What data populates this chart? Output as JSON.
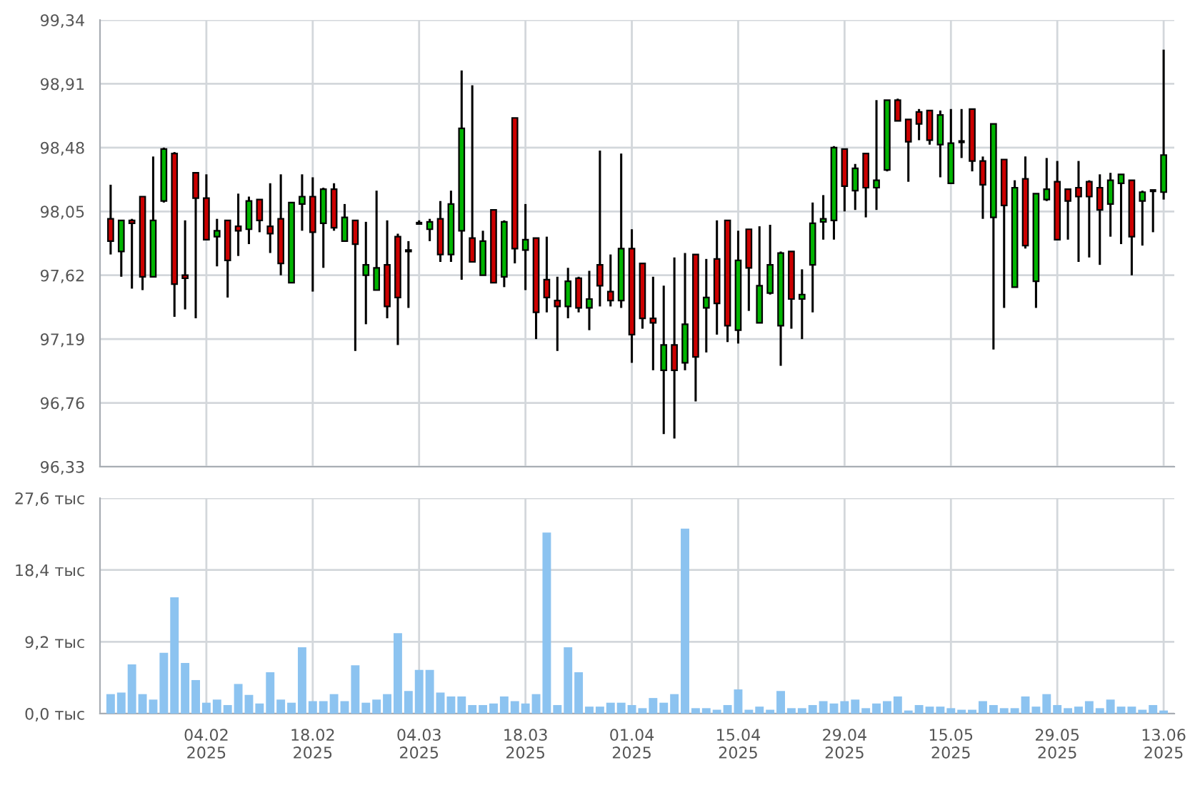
{
  "chart_data": [
    {
      "type": "candlestick",
      "categories": [
        null,
        null,
        null,
        null,
        null,
        null,
        null,
        null,
        null,
        null,
        null,
        null,
        null,
        null,
        null,
        null,
        null,
        null,
        null,
        null,
        null,
        null,
        null,
        null,
        null,
        null,
        null,
        null,
        null,
        null,
        null,
        null,
        null,
        null,
        null,
        null,
        null,
        null,
        null,
        null,
        null,
        null,
        null,
        null,
        null,
        null,
        null,
        null,
        null,
        null,
        null,
        null,
        null,
        null,
        null,
        null,
        null,
        null,
        null,
        null,
        null,
        null,
        null,
        null,
        null,
        null,
        null,
        null,
        null,
        null,
        null,
        null,
        null,
        null,
        null,
        null,
        null,
        null,
        null,
        null,
        null,
        null,
        null,
        null,
        null,
        null,
        null,
        null,
        null,
        null,
        null,
        null,
        null,
        null,
        null,
        null,
        null,
        null,
        null,
        null
      ],
      "ohlc": [
        [
          98.0,
          98.23,
          97.76,
          97.85
        ],
        [
          97.78,
          97.99,
          97.61,
          97.99
        ],
        [
          97.99,
          98.0,
          97.53,
          97.97
        ],
        [
          98.15,
          98.15,
          97.52,
          97.61
        ],
        [
          97.61,
          98.42,
          97.61,
          97.99
        ],
        [
          98.12,
          98.48,
          98.11,
          98.47
        ],
        [
          98.44,
          98.45,
          97.34,
          97.56
        ],
        [
          97.62,
          97.99,
          97.39,
          97.6
        ],
        [
          98.31,
          98.31,
          97.33,
          98.14
        ],
        [
          98.14,
          98.3,
          97.86,
          97.86
        ],
        [
          97.88,
          98.0,
          97.68,
          97.92
        ],
        [
          97.99,
          97.99,
          97.47,
          97.72
        ],
        [
          97.95,
          98.17,
          97.75,
          97.92
        ],
        [
          97.93,
          98.15,
          97.83,
          98.12
        ],
        [
          98.13,
          98.13,
          97.91,
          97.99
        ],
        [
          97.95,
          98.24,
          97.77,
          97.9
        ],
        [
          98.0,
          98.3,
          97.62,
          97.7
        ],
        [
          97.57,
          98.11,
          97.57,
          98.11
        ],
        [
          98.1,
          98.3,
          97.92,
          98.15
        ],
        [
          98.15,
          98.28,
          97.51,
          97.91
        ],
        [
          97.97,
          98.21,
          97.67,
          98.2
        ],
        [
          98.2,
          98.24,
          97.92,
          97.94
        ],
        [
          97.85,
          98.1,
          97.85,
          98.01
        ],
        [
          97.99,
          97.99,
          97.11,
          97.83
        ],
        [
          97.62,
          97.98,
          97.29,
          97.69
        ],
        [
          97.52,
          98.19,
          97.52,
          97.67
        ],
        [
          97.69,
          97.99,
          97.33,
          97.41
        ],
        [
          97.88,
          97.9,
          97.15,
          97.47
        ],
        [
          97.79,
          97.85,
          97.4,
          97.78
        ],
        [
          97.97,
          97.99,
          97.96,
          97.97
        ],
        [
          97.93,
          98.0,
          97.85,
          97.98
        ],
        [
          98.0,
          98.12,
          97.71,
          97.76
        ],
        [
          97.76,
          98.19,
          97.71,
          98.1
        ],
        [
          97.92,
          99.0,
          97.59,
          98.61
        ],
        [
          97.87,
          98.9,
          97.71,
          97.71
        ],
        [
          97.62,
          97.92,
          97.62,
          97.85
        ],
        [
          98.06,
          98.06,
          97.57,
          97.57
        ],
        [
          97.61,
          97.99,
          97.54,
          97.98
        ],
        [
          98.68,
          98.68,
          97.7,
          97.8
        ],
        [
          97.79,
          98.1,
          97.52,
          97.86
        ],
        [
          97.87,
          97.87,
          97.19,
          97.37
        ],
        [
          97.59,
          97.88,
          97.37,
          97.47
        ],
        [
          97.45,
          97.61,
          97.11,
          97.41
        ],
        [
          97.41,
          97.67,
          97.33,
          97.58
        ],
        [
          97.6,
          97.61,
          97.37,
          97.4
        ],
        [
          97.4,
          97.65,
          97.25,
          97.46
        ],
        [
          97.69,
          98.46,
          97.41,
          97.55
        ],
        [
          97.51,
          97.76,
          97.41,
          97.45
        ],
        [
          97.45,
          98.44,
          97.4,
          97.8
        ],
        [
          97.8,
          97.93,
          97.03,
          97.22
        ],
        [
          97.7,
          97.7,
          97.26,
          97.33
        ],
        [
          97.33,
          97.61,
          96.98,
          97.3
        ],
        [
          96.98,
          97.55,
          96.55,
          97.15
        ],
        [
          97.15,
          97.74,
          96.52,
          96.98
        ],
        [
          97.03,
          97.77,
          96.98,
          97.29
        ],
        [
          97.76,
          97.76,
          96.77,
          97.07
        ],
        [
          97.4,
          97.73,
          97.1,
          97.47
        ],
        [
          97.73,
          97.99,
          97.22,
          97.43
        ],
        [
          97.99,
          97.99,
          97.17,
          97.28
        ],
        [
          97.25,
          97.92,
          97.16,
          97.72
        ],
        [
          97.93,
          97.93,
          97.38,
          97.67
        ],
        [
          97.3,
          97.95,
          97.3,
          97.55
        ],
        [
          97.5,
          97.96,
          97.49,
          97.69
        ],
        [
          97.28,
          97.78,
          97.01,
          97.77
        ],
        [
          97.78,
          97.78,
          97.26,
          97.46
        ],
        [
          97.46,
          97.66,
          97.19,
          97.49
        ],
        [
          97.69,
          98.11,
          97.37,
          97.97
        ],
        [
          97.98,
          98.16,
          97.86,
          98.0
        ],
        [
          97.99,
          98.49,
          97.86,
          98.48
        ],
        [
          98.47,
          98.47,
          98.05,
          98.22
        ],
        [
          98.19,
          98.37,
          98.06,
          98.34
        ],
        [
          98.44,
          98.44,
          98.01,
          98.21
        ],
        [
          98.21,
          98.8,
          98.06,
          98.26
        ],
        [
          98.33,
          98.8,
          98.32,
          98.8
        ],
        [
          98.8,
          98.81,
          98.66,
          98.66
        ],
        [
          98.67,
          98.67,
          98.25,
          98.52
        ],
        [
          98.72,
          98.74,
          98.53,
          98.64
        ],
        [
          98.73,
          98.73,
          98.5,
          98.53
        ],
        [
          98.5,
          98.73,
          98.28,
          98.7
        ],
        [
          98.24,
          98.74,
          98.24,
          98.51
        ],
        [
          98.52,
          98.74,
          98.41,
          98.52
        ],
        [
          98.74,
          98.74,
          98.32,
          98.39
        ],
        [
          98.39,
          98.42,
          98.0,
          98.23
        ],
        [
          98.01,
          98.64,
          97.12,
          98.64
        ],
        [
          98.4,
          98.4,
          97.4,
          98.09
        ],
        [
          97.54,
          98.26,
          97.54,
          98.21
        ],
        [
          98.27,
          98.42,
          97.8,
          97.82
        ],
        [
          97.58,
          98.17,
          97.4,
          98.17
        ],
        [
          98.13,
          98.41,
          98.12,
          98.2
        ],
        [
          98.25,
          98.39,
          97.86,
          97.86
        ],
        [
          98.2,
          98.2,
          97.86,
          98.12
        ],
        [
          98.21,
          98.39,
          97.71,
          98.15
        ],
        [
          98.25,
          98.26,
          97.74,
          98.15
        ],
        [
          98.21,
          98.3,
          97.69,
          98.06
        ],
        [
          98.1,
          98.31,
          97.88,
          98.26
        ],
        [
          98.24,
          98.3,
          97.83,
          98.3
        ],
        [
          98.26,
          98.26,
          97.62,
          97.88
        ],
        [
          98.12,
          98.19,
          97.82,
          98.18
        ],
        [
          98.19,
          98.19,
          97.91,
          98.19
        ],
        [
          98.18,
          99.14,
          98.13,
          98.43
        ]
      ],
      "colors": [
        "#cc0000",
        "#00b400",
        "#cc0000",
        "#cc0000",
        "#00b400",
        "#00b400",
        "#cc0000",
        "#cc0000",
        "#cc0000",
        "#cc0000",
        "#00b400",
        "#cc0000",
        "#cc0000",
        "#00b400",
        "#cc0000",
        "#cc0000",
        "#cc0000",
        "#00b400",
        "#00b400",
        "#cc0000",
        "#00b400",
        "#cc0000",
        "#00b400",
        "#cc0000",
        "#00b400",
        "#00b400",
        "#cc0000",
        "#cc0000",
        "#cc0000",
        "#000000",
        "#00b400",
        "#cc0000",
        "#00b400",
        "#00b400",
        "#cc0000",
        "#00b400",
        "#cc0000",
        "#00b400",
        "#cc0000",
        "#00b400",
        "#cc0000",
        "#cc0000",
        "#cc0000",
        "#00b400",
        "#cc0000",
        "#00b400",
        "#cc0000",
        "#cc0000",
        "#00b400",
        "#cc0000",
        "#cc0000",
        "#cc0000",
        "#00b400",
        "#cc0000",
        "#00b400",
        "#cc0000",
        "#00b400",
        "#cc0000",
        "#cc0000",
        "#00b400",
        "#cc0000",
        "#00b400",
        "#00b400",
        "#00b400",
        "#cc0000",
        "#00b400",
        "#00b400",
        "#00b400",
        "#00b400",
        "#cc0000",
        "#00b400",
        "#cc0000",
        "#00b400",
        "#00b400",
        "#cc0000",
        "#cc0000",
        "#cc0000",
        "#cc0000",
        "#00b400",
        "#00b400",
        "#000000",
        "#cc0000",
        "#cc0000",
        "#00b400",
        "#cc0000",
        "#00b400",
        "#cc0000",
        "#00b400",
        "#00b400",
        "#cc0000",
        "#cc0000",
        "#cc0000",
        "#cc0000",
        "#cc0000",
        "#00b400",
        "#00b400",
        "#cc0000",
        "#00b400",
        "#000000",
        "#00b400"
      ],
      "ylim": [
        96.33,
        99.34
      ],
      "yticks": [
        {
          "value": 96.33,
          "label": "96,33"
        },
        {
          "value": 96.76,
          "label": "96,76"
        },
        {
          "value": 97.19,
          "label": "97,19"
        },
        {
          "value": 97.62,
          "label": "97,62"
        },
        {
          "value": 98.05,
          "label": "98,05"
        },
        {
          "value": 98.48,
          "label": "98,48"
        },
        {
          "value": 98.91,
          "label": "98,91"
        },
        {
          "value": 99.34,
          "label": "99,34"
        }
      ],
      "grid": true,
      "tick_labels": "y"
    },
    {
      "type": "bar",
      "categories": [
        null,
        null,
        null,
        null,
        null,
        null,
        null,
        null,
        null,
        "04.02\n2025",
        null,
        null,
        null,
        null,
        null,
        null,
        null,
        null,
        null,
        "18.02\n2025",
        null,
        null,
        null,
        null,
        null,
        null,
        null,
        null,
        null,
        "04.03\n2025",
        null,
        null,
        null,
        null,
        null,
        null,
        null,
        null,
        null,
        "18.03\n2025",
        null,
        null,
        null,
        null,
        null,
        null,
        null,
        null,
        null,
        "01.04\n2025",
        null,
        null,
        null,
        null,
        null,
        null,
        null,
        null,
        null,
        "15.04\n2025",
        null,
        null,
        null,
        null,
        null,
        null,
        null,
        null,
        null,
        "29.04\n2025",
        null,
        null,
        null,
        null,
        null,
        null,
        null,
        null,
        null,
        "15.05\n2025",
        null,
        null,
        null,
        null,
        null,
        null,
        null,
        null,
        null,
        "29.05\n2025",
        null,
        null,
        null,
        null,
        null,
        null,
        null,
        null,
        null,
        "13.06\n2025"
      ],
      "values": [
        2.5,
        2.7,
        6.3,
        2.5,
        1.8,
        7.8,
        14.9,
        6.5,
        4.3,
        1.4,
        1.8,
        1.1,
        3.8,
        2.4,
        1.3,
        5.3,
        1.8,
        1.4,
        8.5,
        1.6,
        1.6,
        2.5,
        1.6,
        6.2,
        1.4,
        1.8,
        2.5,
        10.3,
        2.9,
        5.6,
        5.6,
        2.7,
        2.2,
        2.2,
        1.1,
        1.1,
        1.3,
        2.2,
        1.6,
        1.3,
        2.5,
        23.2,
        1.1,
        8.5,
        5.3,
        0.9,
        0.9,
        1.4,
        1.4,
        1.1,
        0.7,
        2.0,
        1.4,
        2.5,
        23.7,
        0.7,
        0.7,
        0.5,
        1.1,
        3.1,
        0.5,
        0.9,
        0.5,
        2.9,
        0.7,
        0.7,
        1.1,
        1.6,
        1.3,
        1.6,
        1.8,
        0.7,
        1.3,
        1.6,
        2.2,
        0.4,
        1.1,
        0.9,
        0.9,
        0.7,
        0.5,
        0.5,
        1.6,
        1.1,
        0.7,
        0.7,
        2.2,
        0.9,
        2.5,
        1.1,
        0.7,
        0.9,
        1.6,
        0.7,
        1.8,
        0.9,
        0.9,
        0.5,
        1.1,
        0.4
      ],
      "color": "#8cc3f0",
      "ylim": [
        0,
        27.6
      ],
      "yticks": [
        {
          "value": 0,
          "label": "0,0 тыс"
        },
        {
          "value": 9.2,
          "label": "9,2 тыс"
        },
        {
          "value": 18.4,
          "label": "18,4 тыс"
        },
        {
          "value": 27.6,
          "label": "27,6 тыс"
        }
      ],
      "grid": true
    }
  ]
}
